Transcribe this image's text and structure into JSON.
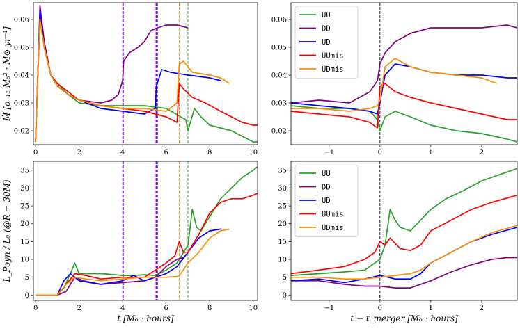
{
  "chart_data": [
    {
      "id": "tl",
      "type": "line",
      "ylabel": "Ṁ [ρ₋₁₁ M₆² · M⊙ yr⁻¹]",
      "xlabel": "",
      "xlim": [
        -0.1,
        10.2
      ],
      "ylim": [
        0.015,
        0.066
      ],
      "xticks": [
        0,
        2,
        4,
        6,
        8,
        10
      ],
      "yticks": [
        0.02,
        0.03,
        0.04,
        0.05,
        0.06
      ],
      "grid": false,
      "legend": null,
      "vlines": [
        {
          "x": 4.0,
          "color": "#ff00ff"
        },
        {
          "x": 4.03,
          "color": "#0000ff"
        },
        {
          "x": 5.5,
          "color": "#ff00ff"
        },
        {
          "x": 5.55,
          "color": "#0000ff"
        },
        {
          "x": 5.6,
          "color": "#800080"
        },
        {
          "x": 6.6,
          "color": "#ff8000"
        },
        {
          "x": 7.0,
          "color": "#2ca02c"
        }
      ],
      "series": [
        {
          "name": "UU",
          "color": "#2ca02c",
          "x": [
            0,
            0.1,
            0.2,
            0.4,
            0.7,
            1.0,
            1.5,
            2,
            3,
            4,
            5,
            6,
            6.9,
            7.0,
            7.3,
            7.6,
            8,
            8.5,
            9,
            9.5,
            10,
            10.2
          ],
          "y": [
            0.016,
            0.04,
            0.06,
            0.05,
            0.04,
            0.037,
            0.033,
            0.03,
            0.029,
            0.029,
            0.029,
            0.028,
            0.024,
            0.02,
            0.028,
            0.025,
            0.022,
            0.021,
            0.02,
            0.018,
            0.016,
            0.016
          ]
        },
        {
          "name": "DD",
          "color": "#800080",
          "x": [
            0,
            0.1,
            0.2,
            0.4,
            0.7,
            1.0,
            1.5,
            2,
            3,
            3.5,
            3.8,
            4.0,
            4.05,
            4.3,
            4.7,
            5.0,
            5.3,
            5.6,
            6.0,
            6.5,
            7.0
          ],
          "y": [
            0.016,
            0.04,
            0.065,
            0.052,
            0.04,
            0.036,
            0.033,
            0.031,
            0.03,
            0.031,
            0.033,
            0.038,
            0.045,
            0.048,
            0.05,
            0.052,
            0.056,
            0.057,
            0.058,
            0.058,
            0.057
          ]
        },
        {
          "name": "UD",
          "color": "#0000ff",
          "x": [
            0,
            0.1,
            0.2,
            0.4,
            0.7,
            1.0,
            1.5,
            2,
            3,
            4,
            5,
            5.5,
            5.55,
            5.8,
            6.2,
            7,
            8,
            8.5
          ],
          "y": [
            0.016,
            0.04,
            0.063,
            0.05,
            0.04,
            0.036,
            0.033,
            0.031,
            0.028,
            0.027,
            0.026,
            0.028,
            0.036,
            0.042,
            0.041,
            0.04,
            0.039,
            0.038
          ]
        },
        {
          "name": "UUmis",
          "color": "#ff0000",
          "x": [
            0,
            0.1,
            0.2,
            0.4,
            0.7,
            1.0,
            1.5,
            2,
            3,
            4,
            5,
            6,
            6.5,
            6.6,
            6.8,
            7.2,
            7.8,
            8.5,
            9,
            9.5,
            10,
            10.2
          ],
          "y": [
            0.016,
            0.04,
            0.06,
            0.05,
            0.04,
            0.037,
            0.034,
            0.031,
            0.029,
            0.028,
            0.027,
            0.025,
            0.023,
            0.037,
            0.035,
            0.032,
            0.03,
            0.027,
            0.025,
            0.023,
            0.022,
            0.022
          ]
        },
        {
          "name": "UDmis",
          "color": "#ff8c00",
          "x": [
            0,
            0.1,
            0.2,
            0.4,
            0.7,
            1.0,
            1.5,
            2,
            3,
            4,
            5,
            6,
            6.5,
            6.6,
            6.8,
            7.2,
            8,
            8.5,
            8.9
          ],
          "y": [
            0.016,
            0.04,
            0.06,
            0.05,
            0.04,
            0.036,
            0.033,
            0.031,
            0.029,
            0.028,
            0.028,
            0.027,
            0.03,
            0.044,
            0.045,
            0.041,
            0.04,
            0.039,
            0.037
          ]
        }
      ]
    },
    {
      "id": "tr",
      "type": "line",
      "ylabel": "",
      "xlabel": "",
      "xlim": [
        -1.75,
        2.7
      ],
      "ylim": [
        0.015,
        0.066
      ],
      "xticks": [
        -1,
        0,
        1,
        2
      ],
      "yticks": [
        0.02,
        0.03,
        0.04,
        0.05,
        0.06
      ],
      "grid": false,
      "legend": "top-left",
      "vlines": [
        {
          "x": 0,
          "color": "#000000"
        }
      ],
      "series": [
        {
          "name": "UU",
          "color": "#2ca02c",
          "x": [
            -1.75,
            -1.2,
            -0.6,
            -0.2,
            -0.05,
            0,
            0.1,
            0.3,
            0.6,
            1,
            1.5,
            2,
            2.5,
            2.7
          ],
          "y": [
            0.029,
            0.028,
            0.028,
            0.027,
            0.024,
            0.02,
            0.025,
            0.027,
            0.025,
            0.022,
            0.02,
            0.019,
            0.017,
            0.016
          ]
        },
        {
          "name": "DD",
          "color": "#800080",
          "x": [
            -1.75,
            -1.2,
            -0.6,
            -0.2,
            -0.05,
            0,
            0.1,
            0.3,
            0.6,
            1,
            1.5,
            2,
            2.5,
            2.7
          ],
          "y": [
            0.03,
            0.031,
            0.03,
            0.034,
            0.038,
            0.044,
            0.048,
            0.052,
            0.055,
            0.057,
            0.057,
            0.057,
            0.058,
            0.057
          ]
        },
        {
          "name": "UD",
          "color": "#0000ff",
          "x": [
            -1.75,
            -1.2,
            -0.6,
            -0.2,
            -0.05,
            0,
            0.1,
            0.3,
            0.6,
            1,
            1.5,
            2,
            2.5,
            2.7
          ],
          "y": [
            0.03,
            0.029,
            0.028,
            0.027,
            0.026,
            0.03,
            0.04,
            0.044,
            0.043,
            0.041,
            0.04,
            0.04,
            0.039,
            0.039
          ]
        },
        {
          "name": "UUmis",
          "color": "#ff0000",
          "x": [
            -1.75,
            -1.2,
            -0.6,
            -0.2,
            -0.05,
            0,
            0.1,
            0.3,
            0.6,
            1,
            1.5,
            2,
            2.5,
            2.7
          ],
          "y": [
            0.027,
            0.026,
            0.025,
            0.023,
            0.021,
            0.036,
            0.037,
            0.034,
            0.032,
            0.03,
            0.028,
            0.026,
            0.024,
            0.024
          ]
        },
        {
          "name": "UDmis",
          "color": "#ff8c00",
          "x": [
            -1.75,
            -1.2,
            -0.6,
            -0.2,
            -0.05,
            0,
            0.1,
            0.3,
            0.6,
            1,
            1.5,
            2,
            2.3
          ],
          "y": [
            0.028,
            0.028,
            0.027,
            0.028,
            0.029,
            0.031,
            0.043,
            0.046,
            0.043,
            0.041,
            0.04,
            0.039,
            0.037
          ]
        }
      ]
    },
    {
      "id": "bl",
      "type": "line",
      "ylabel": "L_Poyn / L₀ (@R = 30M)",
      "xlabel": "t [M₆ · hours]",
      "xlim": [
        -0.1,
        10.2
      ],
      "ylim": [
        -1.5,
        37.5
      ],
      "xticks": [
        0,
        2,
        4,
        6,
        8,
        10
      ],
      "yticks": [
        0,
        5,
        10,
        15,
        20,
        25,
        30,
        35
      ],
      "grid": false,
      "legend": null,
      "vlines": [
        {
          "x": 4.0,
          "color": "#ff00ff"
        },
        {
          "x": 4.03,
          "color": "#0000ff"
        },
        {
          "x": 5.5,
          "color": "#ff00ff"
        },
        {
          "x": 5.55,
          "color": "#0000ff"
        },
        {
          "x": 5.6,
          "color": "#800080"
        },
        {
          "x": 6.6,
          "color": "#ff8000"
        },
        {
          "x": 7.0,
          "color": "#2ca02c"
        }
      ],
      "series": [
        {
          "name": "UU",
          "color": "#2ca02c",
          "x": [
            0,
            1.0,
            1.3,
            1.6,
            1.8,
            2.0,
            2.5,
            3,
            3.5,
            4,
            4.5,
            5,
            5.5,
            6,
            6.5,
            7.0,
            7.2,
            7.4,
            7.6,
            8,
            8.5,
            9,
            9.5,
            10,
            10.2
          ],
          "y": [
            0,
            0,
            2,
            6,
            9,
            6,
            6,
            6,
            5.8,
            5.5,
            5.5,
            5.7,
            5.5,
            7,
            9,
            14,
            24,
            19,
            18,
            22,
            27,
            30,
            33,
            35,
            36
          ]
        },
        {
          "name": "DD",
          "color": "#800080",
          "x": [
            0,
            1.0,
            1.4,
            1.8,
            2.2,
            3,
            4,
            5,
            5.5,
            6,
            6.5,
            6.8
          ],
          "y": [
            0,
            0,
            1,
            5,
            4,
            3,
            3.5,
            4,
            5,
            8,
            10,
            10.5
          ]
        },
        {
          "name": "UD",
          "color": "#0000ff",
          "x": [
            0,
            1.0,
            1.3,
            1.6,
            2,
            2.5,
            3,
            4,
            4.5,
            5,
            5.5,
            6,
            6.5,
            7,
            7.5,
            8,
            8.5
          ],
          "y": [
            0,
            0,
            4,
            6,
            4,
            3.5,
            3,
            4,
            5.5,
            4,
            5,
            6,
            8,
            12,
            16,
            18,
            18.5
          ]
        },
        {
          "name": "UUmis",
          "color": "#ff0000",
          "x": [
            0,
            1.0,
            1.4,
            1.8,
            2.3,
            3,
            4,
            5,
            5.5,
            6,
            6.4,
            6.6,
            6.8,
            7.0,
            7.5,
            8,
            8.5,
            9,
            9.5,
            10,
            10.2
          ],
          "y": [
            0,
            0,
            3,
            6,
            5.5,
            4.5,
            5,
            5,
            7,
            9,
            11,
            15,
            12,
            12,
            17,
            23,
            26,
            27,
            27,
            28,
            28.5
          ]
        },
        {
          "name": "UDmis",
          "color": "#ff8c00",
          "x": [
            0,
            1.0,
            1.4,
            1.8,
            2.3,
            3,
            4,
            5,
            5.5,
            6,
            6.5,
            6.6,
            7,
            7.5,
            8,
            8.5,
            8.9
          ],
          "y": [
            0,
            0,
            3,
            5,
            4.5,
            4,
            4.5,
            5,
            5,
            5,
            5.2,
            5.4,
            9,
            12,
            16,
            18,
            18.5
          ]
        }
      ]
    },
    {
      "id": "br",
      "type": "line",
      "ylabel": "",
      "xlabel": "t − t_merger [M₆ · hours]",
      "xlim": [
        -1.75,
        2.7
      ],
      "ylim": [
        -1.5,
        37.5
      ],
      "xticks": [
        -1,
        0,
        1,
        2
      ],
      "yticks": [
        0,
        5,
        10,
        15,
        20,
        25,
        30,
        35
      ],
      "grid": false,
      "legend": "top-left",
      "vlines": [
        {
          "x": 0,
          "color": "#000000"
        }
      ],
      "series": [
        {
          "name": "UU",
          "color": "#2ca02c",
          "x": [
            -1.75,
            -1.2,
            -0.7,
            -0.3,
            0,
            0.1,
            0.2,
            0.3,
            0.4,
            0.6,
            0.8,
            1.0,
            1.3,
            1.6,
            2.0,
            2.4,
            2.7
          ],
          "y": [
            5.5,
            6,
            6.5,
            7,
            10,
            14,
            24,
            21,
            19,
            18,
            21,
            24,
            27,
            29,
            32,
            34,
            35.5
          ]
        },
        {
          "name": "DD",
          "color": "#800080",
          "x": [
            -1.75,
            -1.2,
            -0.7,
            -0.3,
            0,
            0.3,
            0.6,
            1.0,
            1.4,
            1.8,
            2.2,
            2.5,
            2.7
          ],
          "y": [
            4,
            4,
            3,
            2.5,
            2.5,
            2,
            2,
            4,
            6.5,
            8.5,
            10,
            10.5,
            10.5
          ]
        },
        {
          "name": "UD",
          "color": "#0000ff",
          "x": [
            -1.75,
            -1.2,
            -0.7,
            -0.3,
            0,
            0.3,
            0.6,
            0.8,
            1.0,
            1.4,
            1.8,
            2.2,
            2.7
          ],
          "y": [
            4,
            4.5,
            3.5,
            4.5,
            5.5,
            4.5,
            4.5,
            6,
            9,
            12,
            15,
            17,
            19
          ]
        },
        {
          "name": "UUmis",
          "color": "#ff0000",
          "x": [
            -1.75,
            -1.2,
            -0.7,
            -0.3,
            -0.1,
            0,
            0.1,
            0.2,
            0.4,
            0.6,
            0.8,
            1.0,
            1.4,
            1.8,
            2.2,
            2.7
          ],
          "y": [
            6,
            7,
            8,
            10,
            12,
            15,
            14,
            16,
            13,
            12.5,
            14,
            18,
            21,
            24,
            26,
            28
          ]
        },
        {
          "name": "UDmis",
          "color": "#ff8c00",
          "x": [
            -1.75,
            -1.2,
            -0.7,
            -0.3,
            0,
            0.3,
            0.6,
            0.8,
            1.0,
            1.4,
            1.8,
            2.2,
            2.7
          ],
          "y": [
            5,
            5,
            4.5,
            4.5,
            5,
            5.5,
            6,
            7,
            9,
            12,
            15,
            17.5,
            19.5
          ]
        }
      ]
    }
  ]
}
